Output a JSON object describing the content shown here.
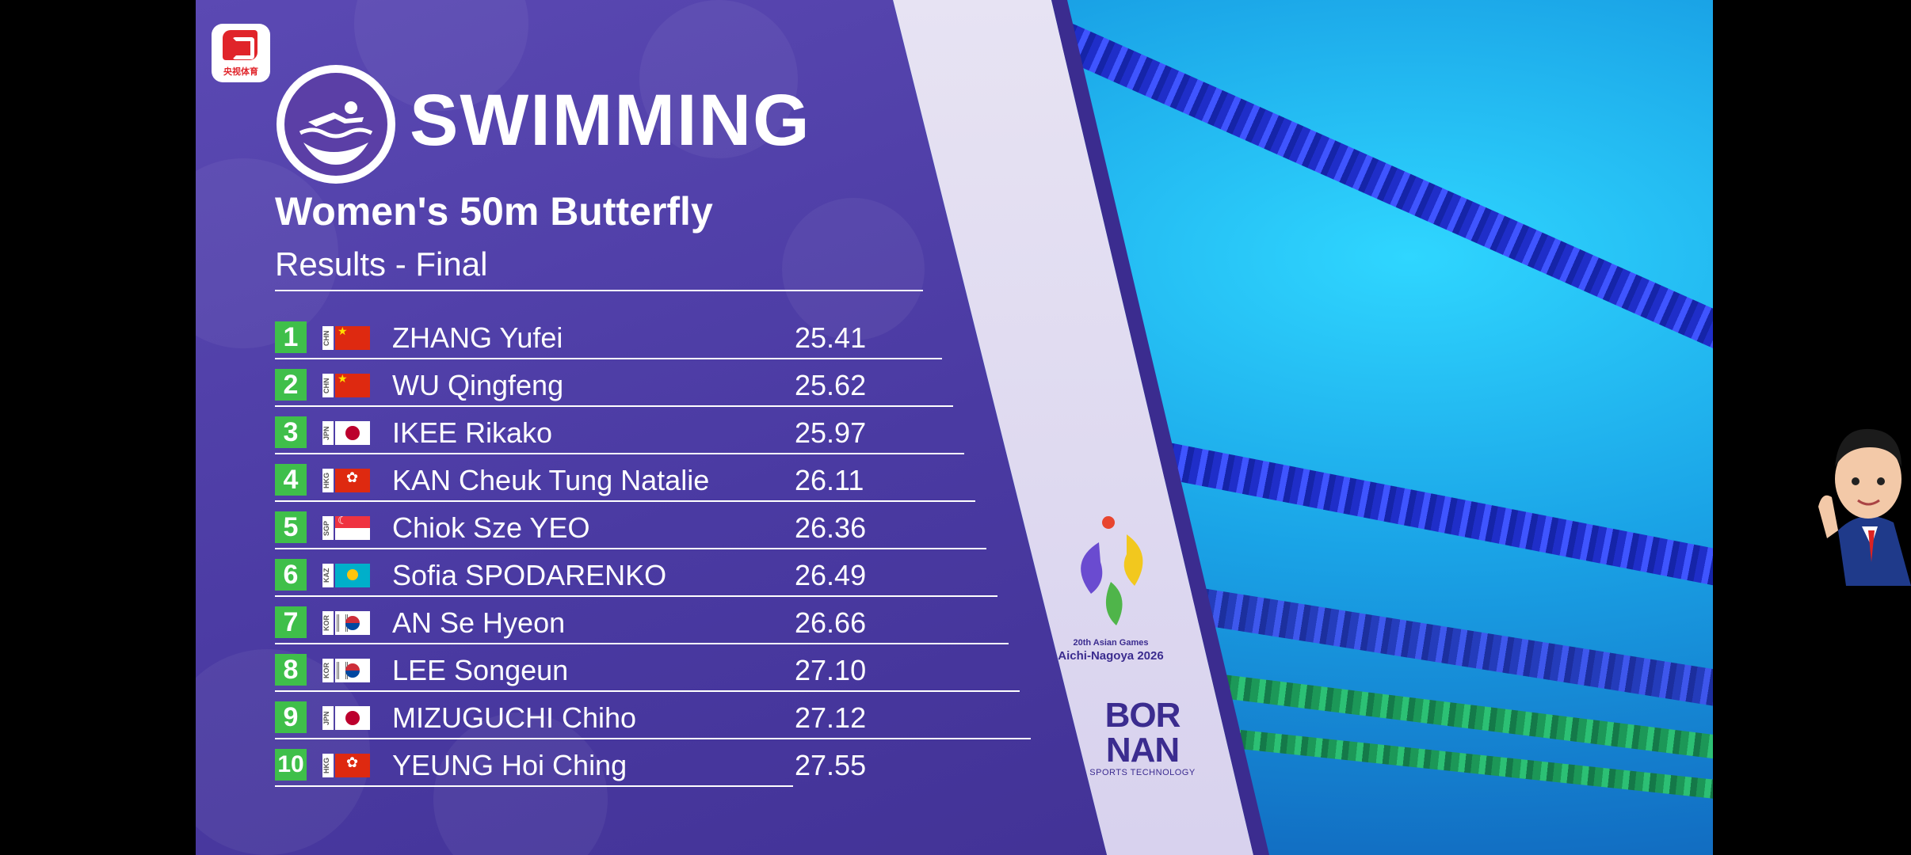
{
  "broadcaster": {
    "logo_text": "央视体育"
  },
  "sport": {
    "title": "SWIMMING",
    "icon": "swimmer-icon"
  },
  "event": {
    "title": "Women's 50m Butterfly",
    "subtitle": "Results - Final"
  },
  "results": [
    {
      "rank": "1",
      "noc": "CHN",
      "name": "ZHANG Yufei",
      "time": "25.41"
    },
    {
      "rank": "2",
      "noc": "CHN",
      "name": "WU Qingfeng",
      "time": "25.62"
    },
    {
      "rank": "3",
      "noc": "JPN",
      "name": "IKEE Rikako",
      "time": "25.97"
    },
    {
      "rank": "4",
      "noc": "HKG",
      "name": "KAN Cheuk Tung Natalie",
      "time": "26.11"
    },
    {
      "rank": "5",
      "noc": "SGP",
      "name": "Chiok Sze YEO",
      "time": "26.36"
    },
    {
      "rank": "6",
      "noc": "KAZ",
      "name": "Sofia SPODARENKO",
      "time": "26.49"
    },
    {
      "rank": "7",
      "noc": "KOR",
      "name": "AN Se Hyeon",
      "time": "26.66"
    },
    {
      "rank": "8",
      "noc": "KOR",
      "name": "LEE Songeun",
      "time": "27.10"
    },
    {
      "rank": "9",
      "noc": "JPN",
      "name": "MIZUGUCHI Chiho",
      "time": "27.12"
    },
    {
      "rank": "10",
      "noc": "HKG",
      "name": "YEUNG Hoi Ching",
      "time": "27.55"
    }
  ],
  "emblem": {
    "line1": "20th Asian Games",
    "line2": "Aichi-Nagoya 2026"
  },
  "timing_brand": {
    "line1": "BOR",
    "line2": "NAN",
    "line3": "SPORTS TECHNOLOGY"
  },
  "colors": {
    "panel": "#4a3aa0",
    "rank_badge": "#3fbf4a",
    "pool": "#1aa3e6"
  }
}
